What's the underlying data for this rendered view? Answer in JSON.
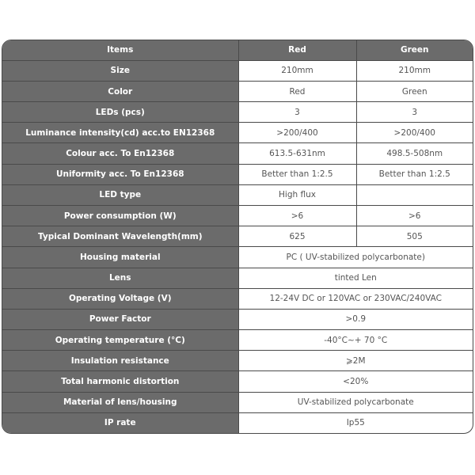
{
  "header": {
    "items": "Items",
    "red": "Red",
    "green": "Green"
  },
  "rows": [
    {
      "item": "Size",
      "red": "210mm",
      "green": "210mm"
    },
    {
      "item": "Color",
      "red": "Red",
      "green": "Green"
    },
    {
      "item": "LEDs (pcs)",
      "red": "3",
      "green": "3"
    },
    {
      "item": "Luminance intensity(cd) acc.to EN12368",
      "red": ">200/400",
      "green": ">200/400"
    },
    {
      "item": "Colour acc. To En12368",
      "red": "613.5-631nm",
      "green": "498.5-508nm"
    },
    {
      "item": "Uniformity acc. To En12368",
      "red": "Better than 1:2.5",
      "green": "Better than 1:2.5"
    },
    {
      "item": "LED type",
      "red": "High flux",
      "green": ""
    },
    {
      "item": "Power consumption (W)",
      "red": ">6",
      "green": ">6"
    },
    {
      "item": "Typical Dominant Wavelength(mm)",
      "red": "625",
      "green": "505"
    },
    {
      "item": "Housing material",
      "both": "PC ( UV-stabilized polycarbonate)"
    },
    {
      "item": "Lens",
      "both": "tinted Len"
    },
    {
      "item": "Operating Voltage (V)",
      "both": "12-24V DC or 120VAC or 230VAC/240VAC"
    },
    {
      "item": "Power Factor",
      "both": ">0.9"
    },
    {
      "item": "Operating temperature (°C)",
      "both": "-40°C~+ 70 °C"
    },
    {
      "item": "Insulation resistance",
      "both": "⩾2M"
    },
    {
      "item": "Total harmonic distortion",
      "both": "<20%"
    },
    {
      "item": "Material of lens/housing",
      "both": "UV-stabilized polycarbonate"
    },
    {
      "item": "IP rate",
      "both": "Ip55"
    }
  ]
}
